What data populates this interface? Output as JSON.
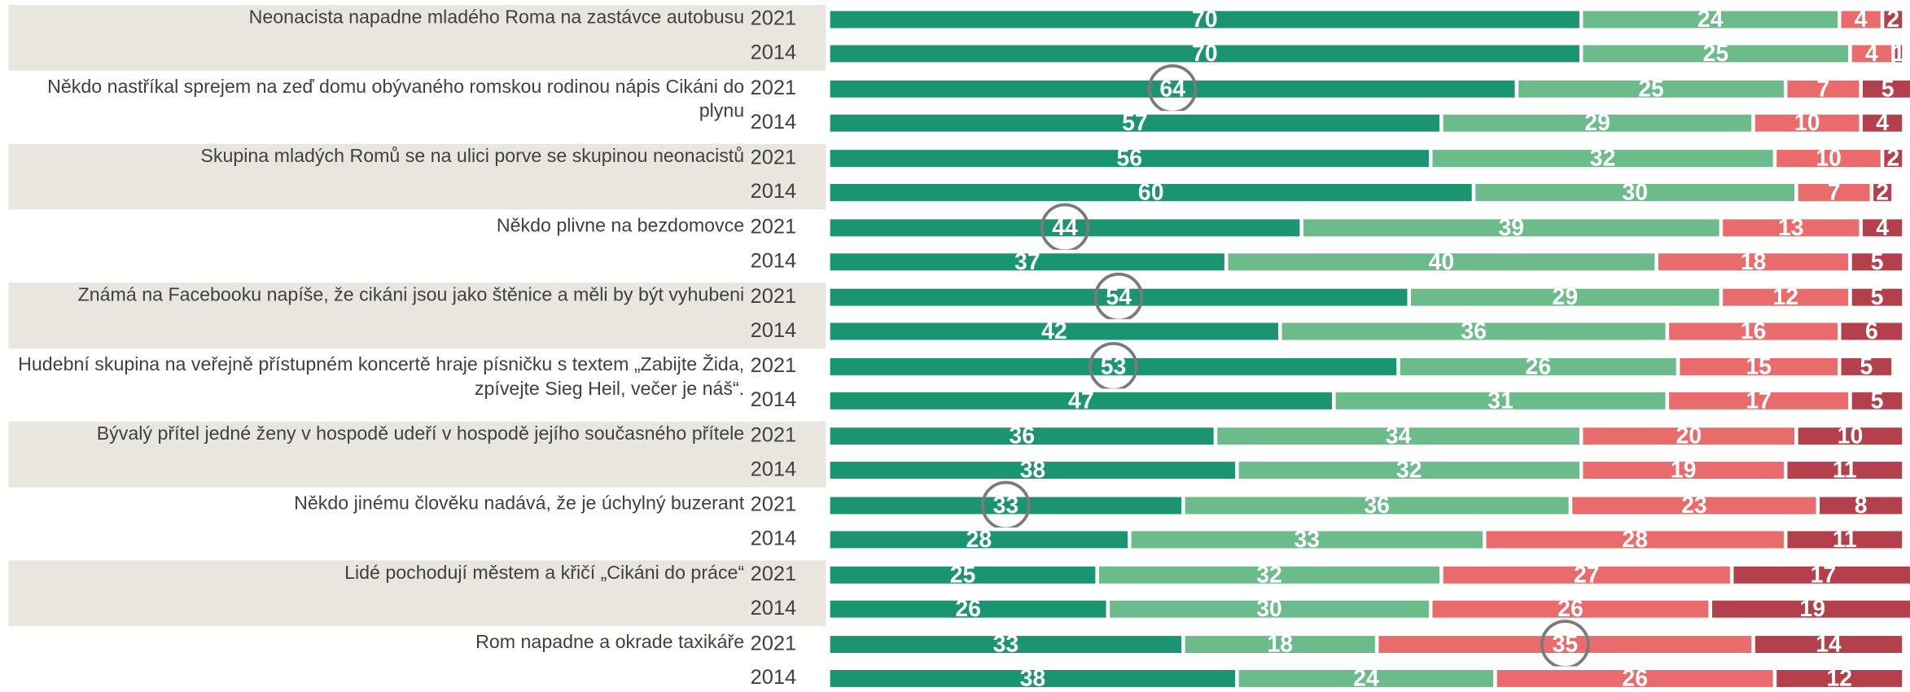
{
  "chart_data": {
    "type": "stacked_bar",
    "xlim": [
      0,
      100
    ],
    "colors": [
      "#1b9471",
      "#6cbc8b",
      "#ea6b6b",
      "#b3404a"
    ],
    "band_color": "#e9e6e0",
    "groups": [
      {
        "label": "Neonacista napadne mladého Roma na zastávce autobusu",
        "banded": true,
        "bars": [
          {
            "year": "2021",
            "values": [
              70,
              24,
              4,
              2
            ]
          },
          {
            "year": "2014",
            "values": [
              70,
              25,
              4,
              1
            ]
          }
        ]
      },
      {
        "label": "Někdo nastříkal sprejem na zeď domu obývaného romskou rodinou nápis  Cikáni do plynu",
        "banded": false,
        "bars": [
          {
            "year": "2021",
            "values": [
              64,
              25,
              7,
              5
            ],
            "circled": 0
          },
          {
            "year": "2014",
            "values": [
              57,
              29,
              10,
              4
            ]
          }
        ]
      },
      {
        "label": "Skupina mladých Romů se na ulici porve se skupinou neonacistů",
        "banded": true,
        "bars": [
          {
            "year": "2021",
            "values": [
              56,
              32,
              10,
              2
            ]
          },
          {
            "year": "2014",
            "values": [
              60,
              30,
              7,
              2
            ]
          }
        ]
      },
      {
        "label": "Někdo plivne na bezdomovce",
        "banded": false,
        "bars": [
          {
            "year": "2021",
            "values": [
              44,
              39,
              13,
              4
            ],
            "circled": 0
          },
          {
            "year": "2014",
            "values": [
              37,
              40,
              18,
              5
            ]
          }
        ]
      },
      {
        "label": "Známá na Facebooku napíše, že cikáni jsou jako štěnice a měli by být vyhubeni",
        "banded": true,
        "bars": [
          {
            "year": "2021",
            "values": [
              54,
              29,
              12,
              5
            ],
            "circled": 0
          },
          {
            "year": "2014",
            "values": [
              42,
              36,
              16,
              6
            ]
          }
        ]
      },
      {
        "label": "Hudební skupina na veřejně přístupném koncertě hraje písničku s textem „Zabijte Žida, zpívejte Sieg Heil, večer je náš“.",
        "banded": false,
        "bars": [
          {
            "year": "2021",
            "values": [
              53,
              26,
              15,
              5
            ],
            "circled": 0
          },
          {
            "year": "2014",
            "values": [
              47,
              31,
              17,
              5
            ]
          }
        ]
      },
      {
        "label": "Bývalý přítel jedné ženy v hospodě udeří v hospodě jejího současného přítele",
        "banded": true,
        "bars": [
          {
            "year": "2021",
            "values": [
              36,
              34,
              20,
              10
            ]
          },
          {
            "year": "2014",
            "values": [
              38,
              32,
              19,
              11
            ]
          }
        ]
      },
      {
        "label": "Někdo jinému člověku nadává, že je úchylný buzerant",
        "banded": false,
        "bars": [
          {
            "year": "2021",
            "values": [
              33,
              36,
              23,
              8
            ],
            "circled": 0
          },
          {
            "year": "2014",
            "values": [
              28,
              33,
              28,
              11
            ]
          }
        ]
      },
      {
        "label": "Lidé pochodují městem a křičí „Cikáni do práce“",
        "banded": true,
        "bars": [
          {
            "year": "2021",
            "values": [
              25,
              32,
              27,
              17
            ]
          },
          {
            "year": "2014",
            "values": [
              26,
              30,
              26,
              19
            ]
          }
        ]
      },
      {
        "label": "Rom napadne a okrade taxikáře",
        "banded": false,
        "bars": [
          {
            "year": "2021",
            "values": [
              33,
              18,
              35,
              14
            ],
            "circled": 2
          },
          {
            "year": "2014",
            "values": [
              38,
              24,
              26,
              12
            ]
          }
        ]
      }
    ]
  }
}
